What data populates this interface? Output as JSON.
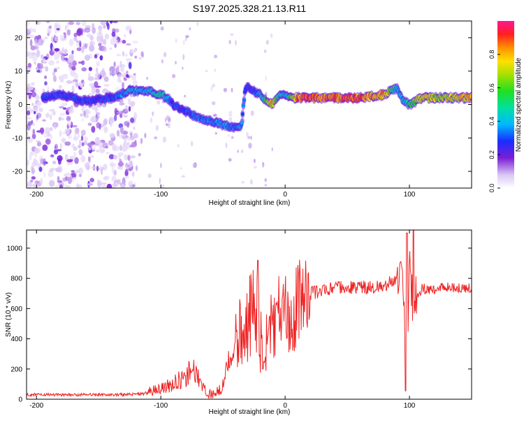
{
  "title": "S197.2025.328.21.13.R11",
  "colors": {
    "snr_line": "#ee2222",
    "spectrogram_low": "#7a1fd6",
    "spectrogram_mid": "#1090ff",
    "spectrogram_high": "#ff2020"
  },
  "chart_data": [
    {
      "type": "heatmap",
      "title": "S197.2025.328.21.13.R11",
      "xlabel": "Height of straight line (km)",
      "ylabel": "Frequency (Hz)",
      "xlim": [
        -208,
        150
      ],
      "ylim": [
        -25,
        25
      ],
      "xticks": [
        -200,
        -100,
        0,
        100
      ],
      "yticks": [
        -20,
        -10,
        0,
        10,
        20
      ],
      "colorbar": {
        "label": "Normalized spectral amplitude",
        "range": [
          0.0,
          1.0
        ],
        "ticks": [
          "0.0",
          "0.2",
          "0.4",
          "0.6",
          "0.8"
        ]
      },
      "ridge": {
        "x": [
          -195,
          -180,
          -160,
          -140,
          -125,
          -110,
          -100,
          -95,
          -90,
          -80,
          -70,
          -60,
          -50,
          -40,
          -35,
          -32,
          -28,
          -25,
          -20,
          -15,
          -10,
          -5,
          0,
          5,
          10,
          20,
          40,
          60,
          80,
          90,
          95,
          100,
          110,
          120,
          130,
          150
        ],
        "y": [
          2,
          3,
          1,
          2,
          4,
          4,
          3,
          2,
          0,
          -2,
          -4,
          -5,
          -6,
          -7,
          -6,
          5,
          5,
          4,
          3,
          1,
          0,
          3,
          3,
          2,
          2,
          2,
          2,
          2,
          3,
          5,
          1,
          0,
          2,
          2,
          2,
          2
        ],
        "amplitude": [
          0.3,
          0.3,
          0.3,
          0.3,
          0.4,
          0.4,
          0.5,
          0.4,
          0.3,
          0.3,
          0.35,
          0.35,
          0.4,
          0.35,
          0.35,
          0.3,
          0.3,
          0.3,
          0.4,
          0.6,
          0.8,
          0.5,
          0.4,
          0.6,
          0.9,
          0.9,
          0.9,
          0.9,
          0.8,
          0.4,
          0.4,
          0.5,
          0.8,
          0.7,
          0.7,
          0.8
        ]
      },
      "noise_region_x": [
        -208,
        -120
      ]
    },
    {
      "type": "line",
      "xlabel": "Height of straight line (km)",
      "ylabel": "SNR (10 * v/v)",
      "xlim": [
        -208,
        150
      ],
      "ylim": [
        0,
        1120
      ],
      "xticks": [
        -200,
        -100,
        0,
        100
      ],
      "yticks": [
        0,
        200,
        400,
        600,
        800,
        1000
      ],
      "series": [
        {
          "name": "SNR",
          "x": [
            -208,
            -180,
            -150,
            -130,
            -115,
            -100,
            -90,
            -80,
            -75,
            -70,
            -65,
            -60,
            -55,
            -50,
            -45,
            -40,
            -35,
            -30,
            -25,
            -22,
            -20,
            -15,
            -10,
            -5,
            0,
            10,
            20,
            30,
            40,
            60,
            80,
            90,
            95,
            97,
            100,
            103,
            110,
            120,
            130,
            150
          ],
          "values": [
            30,
            30,
            30,
            30,
            35,
            60,
            100,
            150,
            200,
            150,
            60,
            30,
            40,
            100,
            250,
            400,
            480,
            500,
            650,
            520,
            380,
            430,
            480,
            560,
            550,
            650,
            700,
            720,
            740,
            740,
            750,
            800,
            820,
            60,
            900,
            620,
            730,
            730,
            740,
            740
          ]
        }
      ],
      "spike_notes": [
        {
          "x": -22,
          "value": 920
        },
        {
          "x": 97,
          "value": 55
        },
        {
          "x": 98,
          "value": 1100
        },
        {
          "x": 103,
          "value": 1120
        }
      ]
    }
  ]
}
